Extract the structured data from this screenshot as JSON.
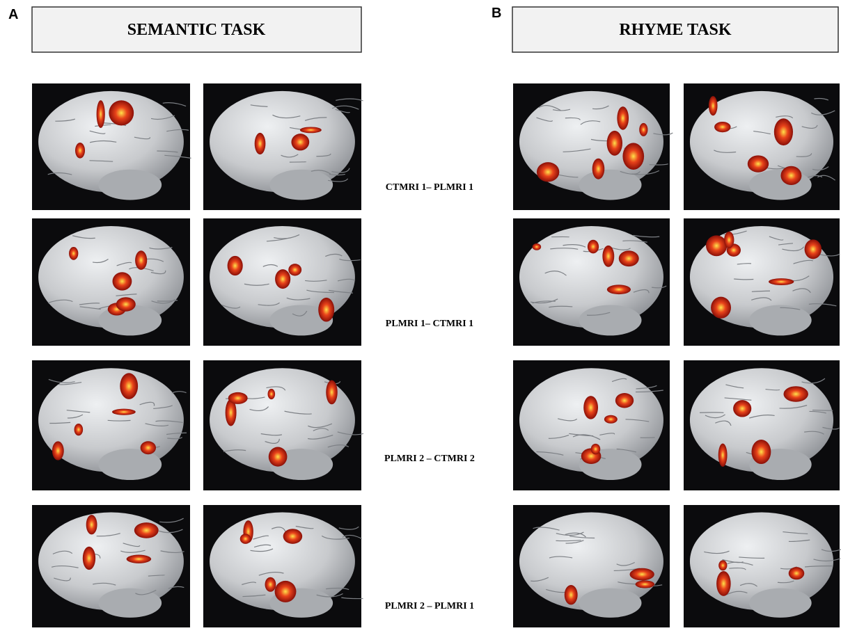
{
  "panels": [
    {
      "label": "A",
      "title": "SEMANTIC TASK"
    },
    {
      "label": "B",
      "title": "RHYME TASK"
    }
  ],
  "row_labels": [
    "CTMRI 1– PLMRI 1",
    "PLMRI 1– CTMRI 1",
    "PLMRI 2 – CTMRI 2",
    "PLMRI 2 – PLMRI 1"
  ]
}
